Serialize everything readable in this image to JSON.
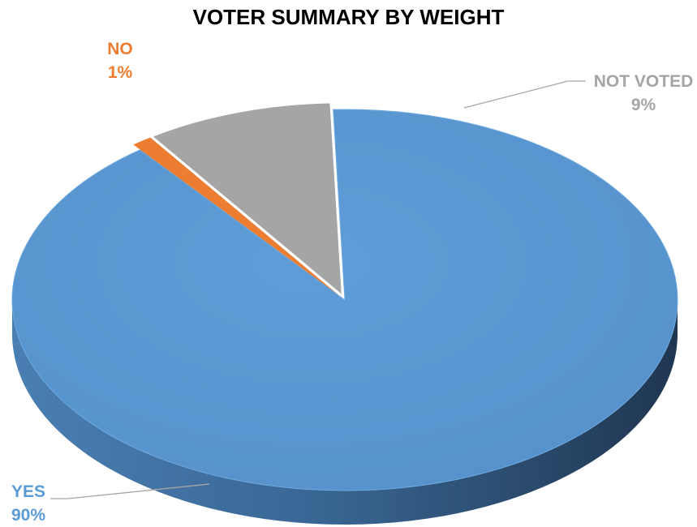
{
  "chart_data": {
    "type": "pie",
    "title": "VOTER SUMMARY BY WEIGHT",
    "slices": [
      {
        "label": "YES",
        "value": 90,
        "value_label": "90%",
        "color": "#5B9BD5",
        "dark": "#2E4F6E"
      },
      {
        "label": "NO",
        "value": 1,
        "value_label": "1%",
        "color": "#ED7D31",
        "dark": "#9A4F1C"
      },
      {
        "label": "NOT VOTED",
        "value": 9,
        "value_label": "9%",
        "color": "#A5A5A5",
        "dark": "#6E6E6E"
      }
    ],
    "legend": "none",
    "style": "3d"
  }
}
